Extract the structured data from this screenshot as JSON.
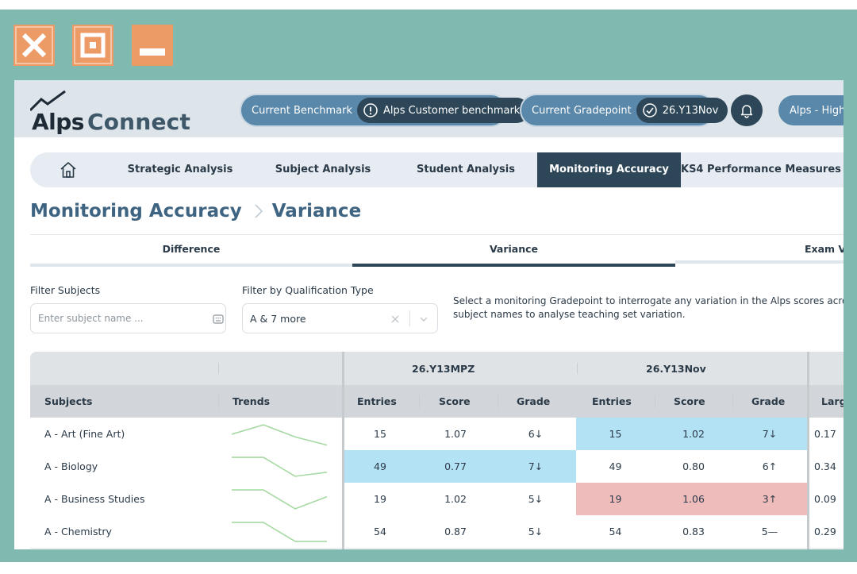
{
  "window_controls": {
    "close_icon": "close-icon",
    "maximize_icon": "maximize-icon",
    "minimize_icon": "minimize-icon"
  },
  "colors": {
    "frame": "#7fb9b0",
    "window_buttons": "#ec9a66",
    "navy": "#2d4658",
    "pill": "#5a88aa",
    "highlight_blue": "#b4e2f5",
    "highlight_red": "#efbcbc",
    "trend_line": "#a6d9a3"
  },
  "header": {
    "logo_text_1": "Alps",
    "logo_text_2": "Connect",
    "benchmark_label": "Current Benchmark",
    "benchmark_value": "Alps Customer benchmark",
    "gradepoint_label": "Current Gradepoint",
    "gradepoint_value": "26.Y13Nov",
    "user_label": "Alps - High"
  },
  "nav": {
    "items": [
      "Strategic Analysis",
      "Subject Analysis",
      "Student Analysis",
      "Monitoring Accuracy",
      "KS4 Performance Measures"
    ],
    "active": "Monitoring Accuracy"
  },
  "breadcrumb": {
    "parent": "Monitoring Accuracy",
    "current": "Variance"
  },
  "subtabs": {
    "items": [
      "Difference",
      "Variance",
      "Exam Vs Mock"
    ],
    "active": "Variance"
  },
  "filters": {
    "subjects_label": "Filter Subjects",
    "subjects_placeholder": "Enter subject name ...",
    "qual_label": "Filter by Qualification Type",
    "qual_value": "A & 7 more"
  },
  "hint_lines": [
    "Select a monitoring Gradepoint to interrogate any variation in the Alps scores across a",
    "subject names to analyse teaching set variation."
  ],
  "table": {
    "group_headers": [
      "26.Y13MPZ",
      "26.Y13Nov"
    ],
    "columns": [
      "Subjects",
      "Trends",
      "Entries",
      "Score",
      "Grade",
      "Entries",
      "Score",
      "Grade",
      "Larg"
    ],
    "rows": [
      {
        "subject": "A - Art (Fine Art)",
        "trend": [
          0.5,
          0.15,
          0.6,
          0.9
        ],
        "g1": {
          "entries": "15",
          "score": "1.07",
          "grade": "6↓",
          "hl": ""
        },
        "g2": {
          "entries": "15",
          "score": "1.02",
          "grade": "7↓",
          "hl": "blue"
        },
        "extra": "0.17"
      },
      {
        "subject": "A - Biology",
        "trend": [
          0.15,
          0.15,
          0.85,
          0.7
        ],
        "g1": {
          "entries": "49",
          "score": "0.77",
          "grade": "7↓",
          "hl": "blue"
        },
        "g2": {
          "entries": "49",
          "score": "0.80",
          "grade": "6↑",
          "hl": ""
        },
        "extra": "0.34"
      },
      {
        "subject": "A - Business Studies",
        "trend": [
          0.15,
          0.15,
          0.85,
          0.4
        ],
        "g1": {
          "entries": "19",
          "score": "1.02",
          "grade": "5↓",
          "hl": ""
        },
        "g2": {
          "entries": "19",
          "score": "1.06",
          "grade": "3↑",
          "hl": "red"
        },
        "extra": "0.09"
      },
      {
        "subject": "A - Chemistry",
        "trend": [
          0.15,
          0.15,
          0.85,
          0.85
        ],
        "g1": {
          "entries": "54",
          "score": "0.87",
          "grade": "5↓",
          "hl": ""
        },
        "g2": {
          "entries": "54",
          "score": "0.83",
          "grade": "5—",
          "hl": ""
        },
        "extra": "0.29"
      }
    ]
  }
}
